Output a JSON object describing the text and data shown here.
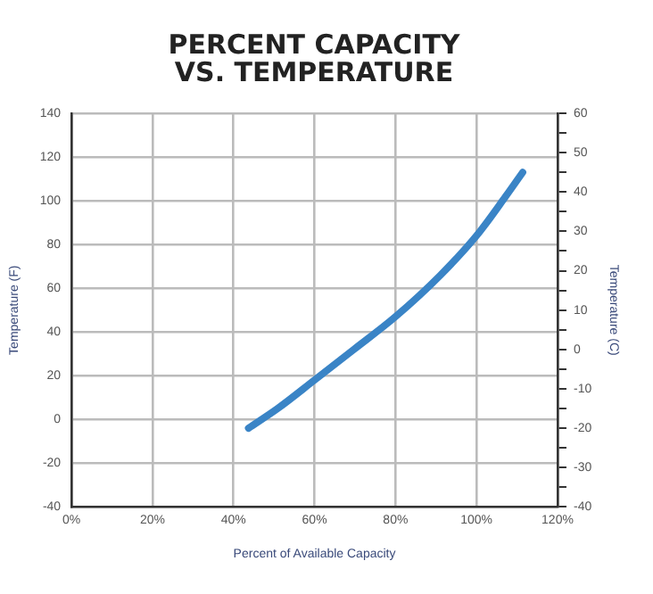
{
  "chart_data": {
    "type": "line",
    "title": "PERCENT CAPACITY\nVS. TEMPERATURE",
    "xlabel": "Percent of Available Capacity",
    "ylabel": "Temperature (F)",
    "y2label": "Temperature (C)",
    "x": [
      43.7,
      50.9,
      60,
      69.7,
      80,
      91.1,
      100,
      107.2,
      111.4
    ],
    "series": [
      {
        "color": "#3a84c6",
        "values": [
          -4,
          5,
          18,
          32,
          47,
          66,
          84,
          102,
          113
        ]
      }
    ],
    "xlim": [
      0,
      120
    ],
    "xticks": [
      {
        "value": 0,
        "label": "0%"
      },
      {
        "value": 20,
        "label": "20%"
      },
      {
        "value": 40,
        "label": "40%"
      },
      {
        "value": 60,
        "label": "60%"
      },
      {
        "value": 80,
        "label": "80%"
      },
      {
        "value": 100,
        "label": "100%"
      },
      {
        "value": 120,
        "label": "120%"
      }
    ],
    "ylim": [
      -40,
      140
    ],
    "yticks": [
      -40,
      -20,
      0,
      20,
      40,
      60,
      80,
      100,
      120,
      140
    ],
    "y2lim": [
      -40,
      60
    ],
    "y2ticks": [
      -40,
      {
        "value": -35,
        "label": null
      },
      -30,
      {
        "value": -25,
        "label": null
      },
      -20,
      {
        "value": -15,
        "label": null
      },
      -10,
      {
        "value": -5,
        "label": null
      },
      0,
      {
        "value": 5,
        "label": null
      },
      10,
      {
        "value": 15,
        "label": null
      },
      20,
      {
        "value": 25,
        "label": null
      },
      30,
      {
        "value": 35,
        "label": null
      },
      40,
      {
        "value": 45,
        "label": null
      },
      50,
      {
        "value": 55,
        "label": null
      },
      60
    ],
    "grid": true,
    "marker": "none",
    "line_style": "solid",
    "legend": false
  }
}
